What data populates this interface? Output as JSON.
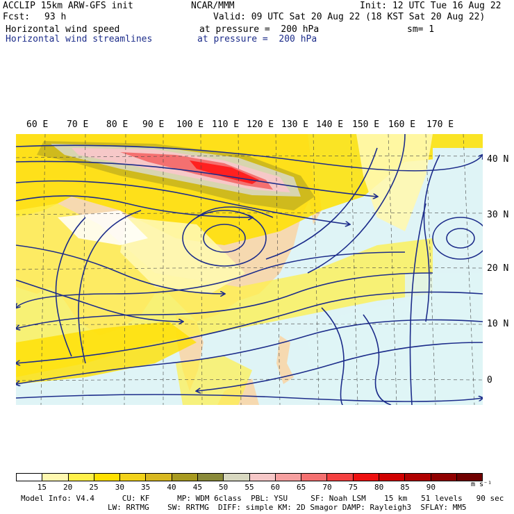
{
  "header": {
    "model": "ACCLIP 15km ARW-GFS init",
    "center": "NCAR/MMM",
    "init": "Init: 12 UTC Tue 16 Aug 22",
    "fcst_label": "Fcst:",
    "fcst_value": "93 h",
    "valid": "Valid: 09 UTC Sat 20 Aug 22 (18 KST Sat 20 Aug 22)",
    "field1": "Horizontal wind speed",
    "field1_level": "at pressure =  200 hPa",
    "smoothing": "sm= 1",
    "field2": "Horizontal wind streamlines",
    "field2_level": "at pressure =  200 hPa"
  },
  "map": {
    "lon_labels": [
      "60 E",
      "70 E",
      "80 E",
      "90 E",
      "100 E",
      "110 E",
      "120 E",
      "130 E",
      "140 E",
      "150 E",
      "160 E",
      "170 E"
    ],
    "lat_labels": [
      "40 N",
      "30 N",
      "20 N",
      "10 N",
      "0"
    ],
    "colors": {
      "ocean": "#dff4f6",
      "land": "#f6d9b0",
      "streamline": "#1c2c8a",
      "jet_core": "#ff2020"
    }
  },
  "colorbar": {
    "labels": [
      "15",
      "20",
      "25",
      "30",
      "35",
      "40",
      "45",
      "50",
      "55",
      "60",
      "65",
      "70",
      "75",
      "80",
      "85",
      "90"
    ],
    "unit": "m s⁻¹",
    "colors": [
      "#ffffff",
      "#fff8b0",
      "#fff04a",
      "#ffe000",
      "#f2d21a",
      "#d8b820",
      "#a89a20",
      "#8a8a3a",
      "#d8d8c0",
      "#f6c8c8",
      "#f6a0a0",
      "#f47070",
      "#f44040",
      "#ee1010",
      "#d00000",
      "#b00000",
      "#900000",
      "#700000"
    ]
  },
  "footer": {
    "line1": "Model Info: V4.4      CU: KF      MP: WDM 6class  PBL: YSU     SF: Noah LSM    15 km   51 levels   90 sec",
    "line2": "LW: RRTMG    SW: RRTMG  DIFF: simple KM: 2D Smagor DAMP: Rayleigh3  SFLAY: MM5"
  }
}
